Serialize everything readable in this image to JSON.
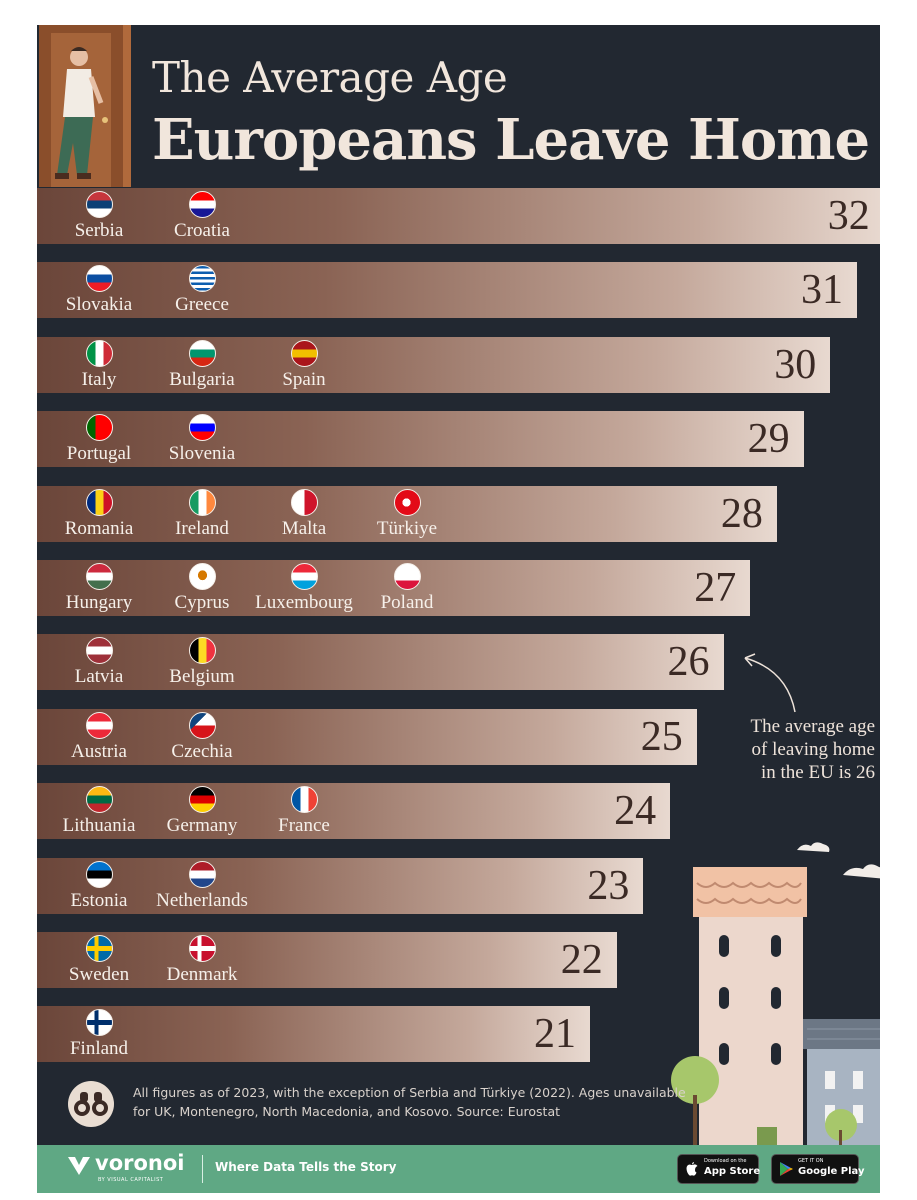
{
  "title": {
    "line1": "The Average Age",
    "line2": "Europeans Leave Home"
  },
  "chart_data": {
    "type": "bar",
    "orientation": "horizontal",
    "categories": [
      "32",
      "31",
      "30",
      "29",
      "28",
      "27",
      "26",
      "25",
      "24",
      "23",
      "22",
      "21"
    ],
    "values": [
      32,
      31,
      30,
      29,
      28,
      27,
      26,
      25,
      24,
      23,
      22,
      21
    ],
    "groups": [
      {
        "value": 32,
        "countries": [
          {
            "name": "Serbia",
            "flag": "serbia"
          },
          {
            "name": "Croatia",
            "flag": "croatia"
          }
        ]
      },
      {
        "value": 31,
        "countries": [
          {
            "name": "Slovakia",
            "flag": "slovakia"
          },
          {
            "name": "Greece",
            "flag": "greece"
          }
        ]
      },
      {
        "value": 30,
        "countries": [
          {
            "name": "Italy",
            "flag": "italy"
          },
          {
            "name": "Bulgaria",
            "flag": "bulgaria"
          },
          {
            "name": "Spain",
            "flag": "spain"
          }
        ]
      },
      {
        "value": 29,
        "countries": [
          {
            "name": "Portugal",
            "flag": "portugal"
          },
          {
            "name": "Slovenia",
            "flag": "slovenia"
          }
        ]
      },
      {
        "value": 28,
        "countries": [
          {
            "name": "Romania",
            "flag": "romania"
          },
          {
            "name": "Ireland",
            "flag": "ireland"
          },
          {
            "name": "Malta",
            "flag": "malta"
          },
          {
            "name": "Türkiye",
            "flag": "turkiye"
          }
        ]
      },
      {
        "value": 27,
        "countries": [
          {
            "name": "Hungary",
            "flag": "hungary"
          },
          {
            "name": "Cyprus",
            "flag": "cyprus"
          },
          {
            "name": "Luxembourg",
            "flag": "luxembourg"
          },
          {
            "name": "Poland",
            "flag": "poland"
          }
        ]
      },
      {
        "value": 26,
        "countries": [
          {
            "name": "Latvia",
            "flag": "latvia"
          },
          {
            "name": "Belgium",
            "flag": "belgium"
          }
        ]
      },
      {
        "value": 25,
        "countries": [
          {
            "name": "Austria",
            "flag": "austria"
          },
          {
            "name": "Czechia",
            "flag": "czechia"
          }
        ]
      },
      {
        "value": 24,
        "countries": [
          {
            "name": "Lithuania",
            "flag": "lithuania"
          },
          {
            "name": "Germany",
            "flag": "germany"
          },
          {
            "name": "France",
            "flag": "france"
          }
        ]
      },
      {
        "value": 23,
        "countries": [
          {
            "name": "Estonia",
            "flag": "estonia"
          },
          {
            "name": "Netherlands",
            "flag": "netherlands"
          }
        ]
      },
      {
        "value": 22,
        "countries": [
          {
            "name": "Sweden",
            "flag": "sweden"
          },
          {
            "name": "Denmark",
            "flag": "denmark"
          }
        ]
      },
      {
        "value": 21,
        "countries": [
          {
            "name": "Finland",
            "flag": "finland"
          }
        ]
      }
    ],
    "annotation": {
      "value": 26,
      "lines": [
        "The average age",
        "of leaving home",
        "in the EU is 26"
      ]
    }
  },
  "note": "All figures as of 2023, with the exception of Serbia and Türkiye (2022). Ages unavailable for UK, Montenegro, North Macedonia, and Kosovo. Source: Eurostat",
  "footer": {
    "brand": "voronoi",
    "brand_sub": "BY VISUAL CAPITALIST",
    "tagline": "Where Data Tells the Story",
    "app_store_small": "Download on the",
    "app_store": "App Store",
    "google_play_small": "GET IT ON",
    "google_play": "Google Play"
  },
  "colors": {
    "background": "#222831",
    "bar_dark": "#6b463a",
    "bar_light": "#e8d9d0",
    "title": "#f1e6dc",
    "footer": "#5fa884"
  },
  "icons": [
    "door-person-illustration",
    "arrow-icon",
    "binoculars-icon",
    "house-illustration",
    "apple-icon",
    "google-play-icon",
    "voronoi-logo"
  ]
}
